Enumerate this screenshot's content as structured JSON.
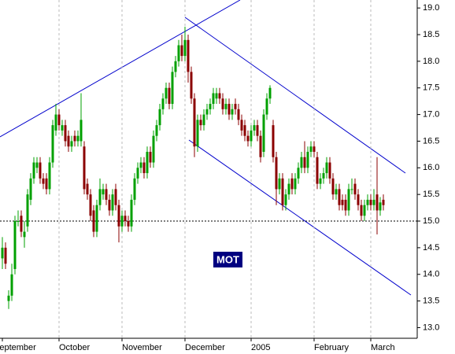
{
  "chart_data": {
    "type": "candlestick",
    "symbol": "MOT",
    "categories": [
      "September",
      null,
      null,
      null,
      null,
      null,
      null,
      null,
      null,
      null,
      null,
      null,
      null,
      null,
      null,
      null,
      null,
      null,
      "October",
      null,
      null,
      null,
      null,
      null,
      null,
      null,
      null,
      null,
      null,
      null,
      null,
      null,
      null,
      null,
      null,
      null,
      null,
      null,
      "November",
      null,
      null,
      null,
      null,
      null,
      null,
      null,
      null,
      null,
      null,
      null,
      null,
      null,
      null,
      null,
      null,
      null,
      null,
      null,
      "December",
      null,
      null,
      null,
      null,
      null,
      null,
      null,
      null,
      null,
      null,
      null,
      null,
      null,
      null,
      null,
      null,
      null,
      null,
      null,
      null,
      "2005",
      null,
      null,
      null,
      null,
      null,
      null,
      null,
      null,
      null,
      null,
      null,
      null,
      null,
      null,
      null,
      null,
      null,
      null,
      null,
      "February",
      null,
      null,
      null,
      null,
      null,
      null,
      null,
      null,
      null,
      null,
      null,
      null,
      null,
      null,
      null,
      null,
      null,
      "March",
      null,
      null,
      null,
      null
    ],
    "open": [
      14.3,
      14.5,
      13.5,
      13.6,
      14.1,
      15.0,
      15.1,
      14.7,
      14.9,
      15.4,
      15.8,
      16.0,
      16.1,
      15.8,
      15.8,
      15.6,
      16.1,
      16.7,
      17.0,
      16.7,
      16.8,
      16.6,
      16.4,
      16.6,
      16.5,
      16.5,
      16.4,
      15.7,
      15.5,
      15.2,
      14.8,
      15.3,
      15.5,
      15.6,
      15.4,
      15.2,
      15.6,
      15.3,
      14.9,
      15.1,
      15.0,
      14.9,
      15.4,
      15.8,
      16.0,
      16.1,
      15.9,
      16.3,
      16.1,
      16.6,
      16.8,
      17.1,
      17.3,
      17.5,
      17.2,
      17.8,
      18.0,
      18.3,
      18.1,
      18.4,
      17.8,
      17.3,
      16.4,
      16.9,
      16.8,
      17.0,
      17.1,
      17.2,
      17.3,
      17.4,
      17.3,
      17.1,
      17.2,
      17.0,
      17.2,
      17.1,
      16.9,
      16.8,
      16.6,
      16.5,
      16.7,
      16.8,
      16.6,
      16.3,
      17.0,
      17.3,
      16.8,
      16.2,
      15.6,
      15.8,
      15.3,
      15.5,
      15.8,
      15.6,
      15.8,
      16.0,
      16.2,
      16.0,
      16.3,
      16.4,
      16.2,
      15.7,
      15.8,
      15.9,
      16.1,
      15.8,
      15.5,
      15.6,
      15.4,
      15.4,
      15.2,
      15.6,
      15.7,
      15.5,
      15.3,
      15.1,
      15.3,
      15.4,
      15.3,
      15.5,
      15.2,
      15.4
    ],
    "high": [
      14.7,
      14.6,
      13.7,
      14.2,
      15.1,
      15.2,
      15.2,
      15.0,
      15.6,
      15.9,
      16.2,
      16.2,
      16.2,
      15.9,
      15.9,
      16.2,
      16.9,
      17.2,
      17.1,
      16.9,
      16.9,
      16.7,
      16.6,
      16.7,
      16.7,
      17.4,
      16.5,
      15.8,
      15.6,
      15.3,
      15.4,
      15.8,
      15.7,
      15.7,
      15.5,
      15.6,
      15.7,
      15.4,
      15.2,
      15.2,
      15.1,
      15.5,
      15.9,
      16.1,
      16.2,
      16.2,
      16.4,
      16.4,
      16.7,
      16.9,
      17.2,
      17.4,
      17.6,
      17.6,
      17.9,
      18.1,
      18.4,
      18.5,
      18.65,
      18.5,
      17.9,
      17.4,
      17.0,
      17.0,
      17.1,
      17.2,
      17.3,
      17.5,
      17.5,
      17.5,
      17.4,
      17.3,
      17.3,
      17.2,
      17.3,
      17.2,
      17.0,
      16.9,
      16.7,
      16.8,
      16.9,
      16.9,
      16.7,
      17.1,
      17.4,
      17.55,
      16.9,
      16.3,
      15.9,
      15.9,
      15.6,
      15.8,
      15.9,
      15.9,
      16.1,
      16.3,
      16.5,
      16.4,
      16.5,
      16.5,
      16.3,
      15.9,
      16.0,
      16.2,
      16.2,
      15.9,
      15.7,
      15.7,
      15.5,
      15.5,
      15.7,
      15.8,
      15.8,
      15.6,
      15.4,
      15.4,
      15.5,
      15.5,
      15.6,
      16.2,
      15.45,
      15.5
    ],
    "low": [
      14.1,
      14.1,
      13.35,
      13.5,
      14.0,
      14.9,
      14.7,
      14.5,
      14.8,
      15.3,
      15.7,
      15.9,
      15.7,
      15.6,
      15.5,
      15.5,
      16.0,
      16.6,
      16.7,
      16.6,
      16.4,
      16.3,
      16.3,
      16.4,
      16.4,
      16.4,
      15.5,
      15.4,
      15.0,
      14.7,
      14.7,
      15.2,
      15.4,
      15.3,
      15.1,
      15.1,
      15.2,
      14.6,
      14.8,
      14.9,
      14.8,
      14.8,
      15.3,
      15.7,
      15.9,
      15.8,
      15.8,
      16.0,
      16.0,
      16.5,
      16.7,
      17.0,
      17.2,
      17.1,
      17.1,
      17.7,
      17.9,
      18.0,
      18.0,
      17.6,
      17.2,
      16.2,
      16.3,
      16.7,
      16.7,
      16.9,
      17.0,
      17.1,
      17.2,
      17.2,
      17.0,
      17.0,
      16.9,
      16.9,
      17.0,
      16.8,
      16.6,
      16.5,
      16.4,
      16.4,
      16.6,
      16.5,
      16.1,
      16.2,
      16.9,
      17.2,
      16.1,
      15.3,
      15.5,
      15.2,
      15.2,
      15.4,
      15.5,
      15.5,
      15.7,
      15.9,
      15.9,
      15.9,
      16.2,
      16.2,
      15.6,
      15.6,
      15.7,
      15.8,
      15.7,
      15.4,
      15.4,
      15.2,
      15.2,
      15.1,
      15.1,
      15.5,
      15.4,
      15.2,
      15.0,
      15.0,
      15.2,
      15.2,
      15.2,
      14.75,
      15.1,
      15.2
    ],
    "close": [
      14.5,
      14.2,
      13.6,
      14.0,
      15.0,
      15.0,
      14.8,
      14.8,
      15.5,
      15.8,
      16.1,
      16.1,
      15.8,
      15.7,
      15.6,
      16.1,
      16.8,
      17.0,
      16.8,
      16.8,
      16.5,
      16.4,
      16.5,
      16.5,
      16.6,
      16.9,
      15.6,
      15.5,
      15.1,
      14.8,
      15.3,
      15.6,
      15.6,
      15.4,
      15.2,
      15.5,
      15.3,
      14.9,
      15.1,
      15.0,
      14.9,
      15.4,
      15.8,
      16.0,
      16.1,
      15.9,
      16.3,
      16.1,
      16.6,
      16.8,
      17.1,
      17.3,
      17.5,
      17.2,
      17.8,
      18.0,
      18.3,
      18.1,
      18.4,
      17.8,
      17.3,
      16.4,
      16.9,
      16.8,
      17.0,
      17.1,
      17.2,
      17.4,
      17.4,
      17.3,
      17.1,
      17.2,
      17.0,
      17.1,
      17.1,
      16.9,
      16.7,
      16.6,
      16.5,
      16.7,
      16.8,
      16.6,
      16.2,
      17.0,
      17.3,
      17.5,
      16.2,
      15.6,
      15.8,
      15.3,
      15.5,
      15.7,
      15.6,
      15.8,
      16.0,
      16.2,
      16.0,
      16.3,
      16.4,
      16.3,
      15.7,
      15.8,
      15.9,
      16.1,
      15.8,
      15.5,
      15.6,
      15.3,
      15.3,
      15.2,
      15.6,
      15.6,
      15.5,
      15.3,
      15.1,
      15.3,
      15.4,
      15.3,
      15.4,
      15.2,
      15.35,
      15.3
    ],
    "up_color": "#00a000",
    "down_color": "#8b0000",
    "ylim": [
      12.8,
      19.15
    ],
    "yticks": [
      {
        "value": 13,
        "label": "13.0"
      },
      13.5,
      {
        "value": 14,
        "label": "14.0"
      },
      14.5,
      {
        "value": 15,
        "label": "15.0"
      },
      15.5,
      {
        "value": 16,
        "label": "16.0"
      },
      16.5,
      {
        "value": 17,
        "label": "17.0"
      },
      17.5,
      {
        "value": 18,
        "label": "18.0"
      },
      18.5,
      {
        "value": 19,
        "label": "19.0"
      }
    ],
    "reference_line": 15,
    "grid": "month"
  }
}
